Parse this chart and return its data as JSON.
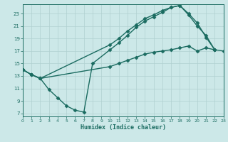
{
  "xlabel": "Humidex (Indice chaleur)",
  "bg_color": "#cce8e8",
  "grid_color": "#b0d0d0",
  "line_color": "#1a6b60",
  "marker": "D",
  "markersize": 2.5,
  "linewidth": 1.0,
  "line1_x": [
    0,
    1,
    2,
    10,
    11,
    12,
    13,
    14,
    15,
    16,
    17,
    18,
    19,
    20,
    21,
    22,
    23
  ],
  "line1_y": [
    14.0,
    13.2,
    12.6,
    14.5,
    15.0,
    15.5,
    16.0,
    16.5,
    16.8,
    17.0,
    17.2,
    17.5,
    17.8,
    17.0,
    17.5,
    17.2,
    17.0
  ],
  "line2_x": [
    0,
    1,
    2,
    10,
    11,
    12,
    13,
    14,
    15,
    16,
    17,
    18,
    19,
    20,
    21,
    22
  ],
  "line2_y": [
    14.0,
    13.2,
    12.6,
    18.0,
    19.0,
    20.2,
    21.2,
    22.2,
    22.8,
    23.5,
    24.0,
    24.3,
    23.0,
    21.5,
    19.2,
    17.2
  ],
  "line3_x": [
    0,
    1,
    2,
    3,
    4,
    5,
    6,
    7,
    8,
    10,
    11,
    12,
    13,
    14,
    15,
    16,
    17,
    18,
    19,
    20,
    21,
    22
  ],
  "line3_y": [
    14.0,
    13.2,
    12.6,
    10.8,
    9.5,
    8.2,
    7.5,
    7.2,
    15.0,
    17.2,
    18.3,
    19.5,
    20.8,
    21.8,
    22.5,
    23.2,
    24.0,
    24.3,
    22.8,
    21.0,
    19.5,
    17.2
  ],
  "xlim": [
    0,
    23
  ],
  "ylim": [
    6.5,
    24.5
  ],
  "yticks": [
    7,
    9,
    11,
    13,
    15,
    17,
    19,
    21,
    23
  ],
  "xticks": [
    0,
    1,
    2,
    3,
    4,
    5,
    6,
    7,
    8,
    9,
    10,
    11,
    12,
    13,
    14,
    15,
    16,
    17,
    18,
    19,
    20,
    21,
    22,
    23
  ]
}
